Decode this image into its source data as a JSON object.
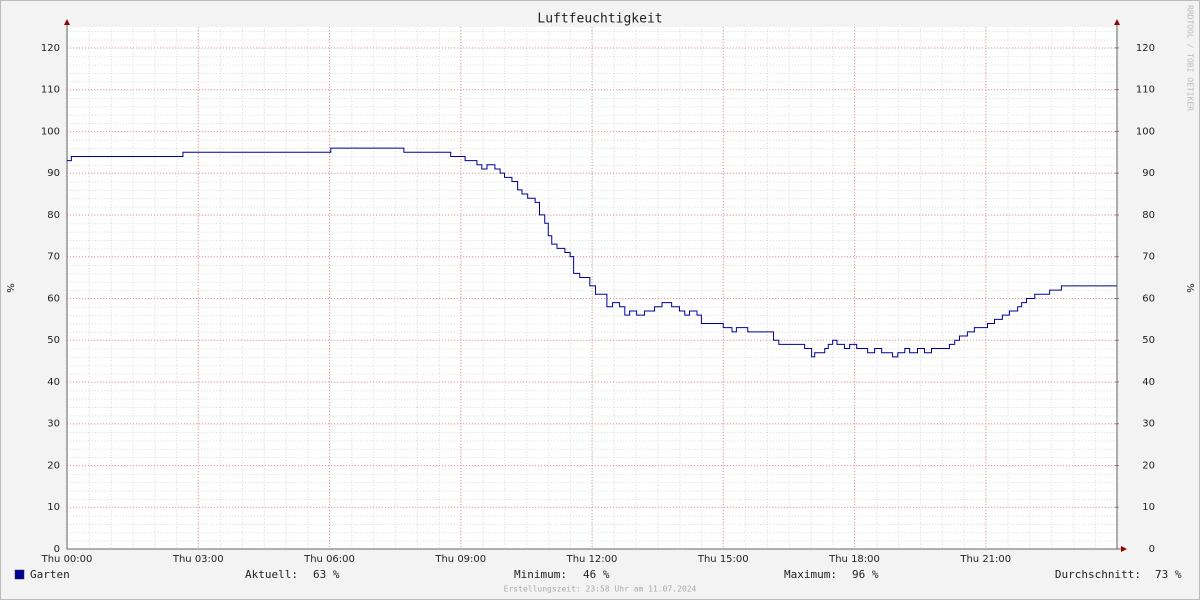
{
  "chart_data": {
    "type": "line",
    "title": "Luftfeuchtigkeit",
    "y_label": "%",
    "y2_label": "%",
    "watermark": "RRDTOOL / TOBI OETIKER",
    "x": [
      0,
      0.1,
      2.65,
      6.03,
      7.7,
      8.77,
      9.1,
      9.37,
      9.48,
      9.6,
      9.78,
      9.9,
      10.0,
      10.17,
      10.3,
      10.4,
      10.53,
      10.7,
      10.8,
      10.92,
      11.0,
      11.08,
      11.2,
      11.38,
      11.5,
      11.58,
      11.72,
      11.95,
      12.08,
      12.34,
      12.47,
      12.63,
      12.75,
      12.86,
      13.02,
      13.2,
      13.43,
      13.6,
      13.82,
      14.0,
      14.12,
      14.23,
      14.4,
      14.5,
      15.0,
      15.2,
      15.3,
      15.56,
      16.15,
      16.27,
      16.86,
      17.02,
      17.09,
      17.32,
      17.4,
      17.5,
      17.6,
      17.77,
      17.89,
      18.05,
      18.3,
      18.46,
      18.62,
      18.87,
      18.99,
      19.15,
      19.26,
      19.44,
      19.6,
      19.76,
      20.17,
      20.29,
      20.4,
      20.58,
      20.74,
      21.04,
      21.2,
      21.38,
      21.54,
      21.73,
      21.82,
      21.93,
      22.12,
      22.46,
      22.73,
      23.99
    ],
    "series": [
      {
        "name": "Garten",
        "color": "#000099",
        "values": [
          93,
          94,
          95,
          96,
          95,
          94,
          93,
          92,
          91,
          92,
          91,
          90,
          89,
          88,
          86,
          85,
          84,
          83,
          80,
          78,
          75,
          73,
          72,
          71,
          70,
          66,
          65,
          63,
          61,
          58,
          59,
          58,
          56,
          57,
          56,
          57,
          58,
          59,
          58,
          57,
          56,
          57,
          56,
          54,
          53,
          52,
          53,
          52,
          50,
          49,
          48,
          46,
          47,
          48,
          49,
          50,
          49,
          48,
          49,
          48,
          47,
          48,
          47,
          46,
          47,
          48,
          47,
          48,
          47,
          48,
          49,
          50,
          51,
          52,
          53,
          54,
          55,
          56,
          57,
          58,
          59,
          60,
          61,
          62,
          63,
          63
        ]
      }
    ],
    "xlim": [
      0,
      24
    ],
    "xticks": [
      {
        "value": 0,
        "label": "Thu 00:00"
      },
      {
        "value": 3,
        "label": "Thu 03:00"
      },
      {
        "value": 6,
        "label": "Thu 06:00"
      },
      {
        "value": 9,
        "label": "Thu 09:00"
      },
      {
        "value": 12,
        "label": "Thu 12:00"
      },
      {
        "value": 15,
        "label": "Thu 15:00"
      },
      {
        "value": 18,
        "label": "Thu 18:00"
      },
      {
        "value": 21,
        "label": "Thu 21:00"
      }
    ],
    "ylim": [
      0,
      125
    ],
    "yticks": [
      0,
      10,
      20,
      30,
      40,
      50,
      60,
      70,
      80,
      90,
      100,
      110,
      120
    ],
    "y2lim": [
      0,
      125
    ],
    "y2ticks": [
      0,
      10,
      20,
      30,
      40,
      50,
      60,
      70,
      80,
      90,
      100,
      110,
      120
    ],
    "grid": true,
    "stats": [
      {
        "label": "Aktuell:",
        "value": "63 %"
      },
      {
        "label": "Minimum:",
        "value": "46 %"
      },
      {
        "label": "Maximum:",
        "value": "96 %"
      },
      {
        "label": "Durchschnitt:",
        "value": "73 %"
      }
    ],
    "footer": "Erstellungszeit: 23:58 Uhr am 11.07.2024"
  }
}
